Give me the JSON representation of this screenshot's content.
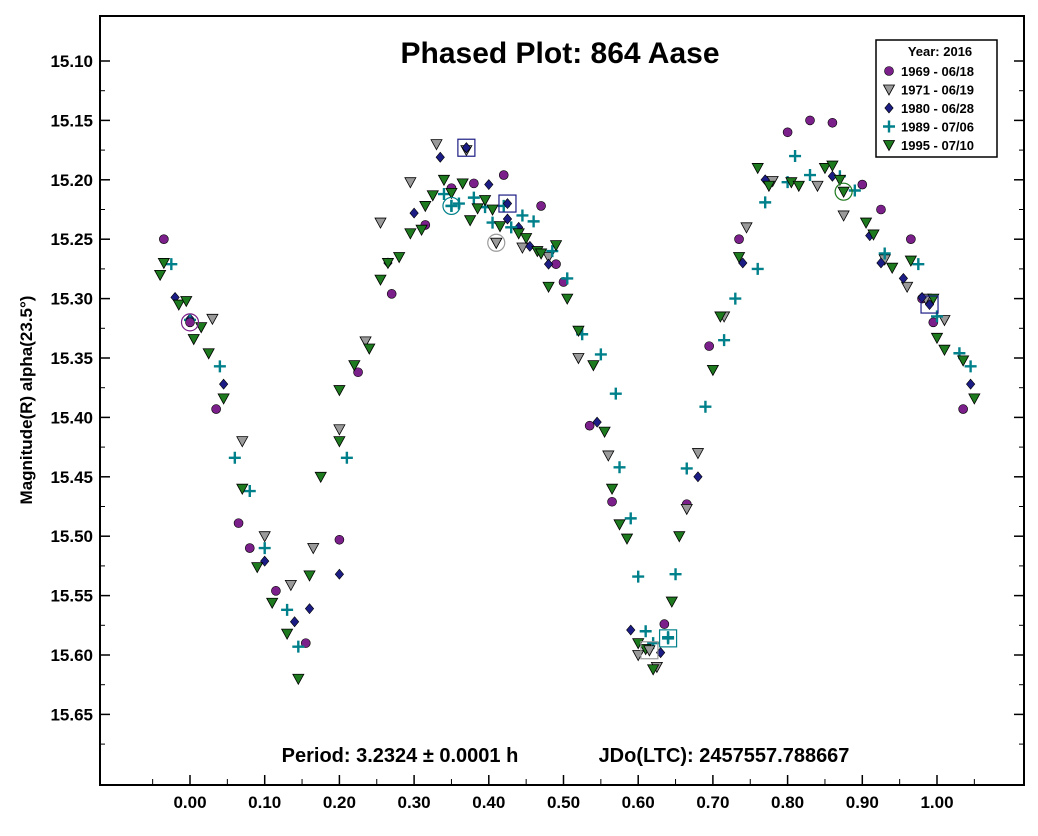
{
  "chart_data": {
    "type": "scatter",
    "title": "Phased Plot: 864 Aase",
    "ylabel": "Magnitude(R) alpha(23.5°)",
    "xlabel": "",
    "footer_period": "Period: 3.2324 ± 0.0001 h",
    "footer_epoch": "JDo(LTC): 2457557.788667",
    "x_ticks": [
      "0.00",
      "0.10",
      "0.20",
      "0.30",
      "0.40",
      "0.50",
      "0.60",
      "0.70",
      "0.80",
      "0.90",
      "1.00"
    ],
    "y_ticks": [
      "15.10",
      "15.15",
      "15.20",
      "15.25",
      "15.30",
      "15.35",
      "15.40",
      "15.45",
      "15.50",
      "15.55",
      "15.60",
      "15.65"
    ],
    "xlim": [
      -0.12,
      1.12
    ],
    "ylim": [
      15.05,
      15.7
    ],
    "y_inverted": true,
    "grid": false,
    "legend_placement": "top-right",
    "legend_title": "Year: 2016",
    "series": [
      {
        "name": "1969 - 06/18",
        "marker": "circle",
        "color": "#7b1f8a",
        "points": [
          [
            -0.035,
            15.25
          ],
          [
            0.035,
            15.393
          ],
          [
            0.065,
            15.489
          ],
          [
            0.08,
            15.51
          ],
          [
            0.115,
            15.546
          ],
          [
            0.155,
            15.59
          ],
          [
            0.2,
            15.503
          ],
          [
            0.225,
            15.362
          ],
          [
            0.27,
            15.296
          ],
          [
            0.315,
            15.238
          ],
          [
            0.35,
            15.207
          ],
          [
            0.38,
            15.203
          ],
          [
            0.42,
            15.196
          ],
          [
            0.47,
            15.222
          ],
          [
            0.49,
            15.271
          ],
          [
            0.5,
            15.286
          ],
          [
            0.535,
            15.407
          ],
          [
            0.565,
            15.471
          ],
          [
            0.635,
            15.574
          ],
          [
            0.665,
            15.473
          ],
          [
            0.695,
            15.34
          ],
          [
            0.735,
            15.25
          ],
          [
            0.8,
            15.16
          ],
          [
            0.83,
            15.15
          ],
          [
            0.86,
            15.152
          ],
          [
            0.9,
            15.204
          ],
          [
            0.925,
            15.225
          ],
          [
            0.965,
            15.25
          ],
          [
            0.98,
            15.3
          ],
          [
            0.995,
            15.32
          ],
          [
            1.035,
            15.393
          ]
        ]
      },
      {
        "name": "1971 - 06/19",
        "marker": "triangle",
        "color": "#9a9a9a",
        "points": [
          [
            0.03,
            15.317
          ],
          [
            0.07,
            15.42
          ],
          [
            0.1,
            15.5
          ],
          [
            0.135,
            15.541
          ],
          [
            0.165,
            15.51
          ],
          [
            0.2,
            15.41
          ],
          [
            0.235,
            15.336
          ],
          [
            0.255,
            15.236
          ],
          [
            0.295,
            15.202
          ],
          [
            0.33,
            15.17
          ],
          [
            0.37,
            15.175
          ],
          [
            0.41,
            15.253
          ],
          [
            0.445,
            15.257
          ],
          [
            0.48,
            15.265
          ],
          [
            0.52,
            15.35
          ],
          [
            0.56,
            15.432
          ],
          [
            0.6,
            15.6
          ],
          [
            0.625,
            15.61
          ],
          [
            0.665,
            15.477
          ],
          [
            0.68,
            15.43
          ],
          [
            0.715,
            15.315
          ],
          [
            0.745,
            15.24
          ],
          [
            0.78,
            15.201
          ],
          [
            0.84,
            15.205
          ],
          [
            0.875,
            15.23
          ],
          [
            0.93,
            15.267
          ],
          [
            0.96,
            15.29
          ],
          [
            0.985,
            15.3
          ],
          [
            1.01,
            15.318
          ]
        ]
      },
      {
        "name": "1980 - 06/28",
        "marker": "diamond",
        "color": "#1c1c85",
        "points": [
          [
            -0.02,
            15.299
          ],
          [
            0.0,
            15.317
          ],
          [
            0.045,
            15.372
          ],
          [
            0.1,
            15.521
          ],
          [
            0.14,
            15.572
          ],
          [
            0.16,
            15.561
          ],
          [
            0.2,
            15.532
          ],
          [
            0.265,
            15.27
          ],
          [
            0.3,
            15.228
          ],
          [
            0.335,
            15.181
          ],
          [
            0.37,
            15.173
          ],
          [
            0.4,
            15.204
          ],
          [
            0.425,
            15.233
          ],
          [
            0.44,
            15.24
          ],
          [
            0.455,
            15.256
          ],
          [
            0.48,
            15.271
          ],
          [
            0.545,
            15.404
          ],
          [
            0.59,
            15.579
          ],
          [
            0.63,
            15.598
          ],
          [
            0.68,
            15.45
          ],
          [
            0.74,
            15.27
          ],
          [
            0.77,
            15.2
          ],
          [
            0.86,
            15.197
          ],
          [
            0.91,
            15.247
          ],
          [
            0.925,
            15.27
          ],
          [
            0.955,
            15.283
          ],
          [
            0.98,
            15.299
          ],
          [
            1.045,
            15.372
          ]
        ]
      },
      {
        "name": "1989 - 07/06",
        "marker": "plus",
        "color": "#00808a",
        "points": [
          [
            -0.025,
            15.271
          ],
          [
            0.0,
            15.318
          ],
          [
            0.04,
            15.357
          ],
          [
            0.06,
            15.434
          ],
          [
            0.08,
            15.462
          ],
          [
            0.1,
            15.51
          ],
          [
            0.13,
            15.562
          ],
          [
            0.145,
            15.593
          ],
          [
            0.21,
            15.434
          ],
          [
            0.34,
            15.212
          ],
          [
            0.35,
            15.222
          ],
          [
            0.36,
            15.22
          ],
          [
            0.38,
            15.215
          ],
          [
            0.395,
            15.223
          ],
          [
            0.405,
            15.236
          ],
          [
            0.42,
            15.222
          ],
          [
            0.43,
            15.24
          ],
          [
            0.445,
            15.23
          ],
          [
            0.46,
            15.235
          ],
          [
            0.485,
            15.26
          ],
          [
            0.505,
            15.283
          ],
          [
            0.525,
            15.33
          ],
          [
            0.55,
            15.347
          ],
          [
            0.57,
            15.38
          ],
          [
            0.575,
            15.442
          ],
          [
            0.59,
            15.485
          ],
          [
            0.6,
            15.534
          ],
          [
            0.61,
            15.58
          ],
          [
            0.62,
            15.59
          ],
          [
            0.64,
            15.585
          ],
          [
            0.65,
            15.532
          ],
          [
            0.665,
            15.443
          ],
          [
            0.69,
            15.391
          ],
          [
            0.715,
            15.335
          ],
          [
            0.73,
            15.3
          ],
          [
            0.76,
            15.275
          ],
          [
            0.77,
            15.219
          ],
          [
            0.8,
            15.202
          ],
          [
            0.81,
            15.18
          ],
          [
            0.83,
            15.196
          ],
          [
            0.87,
            15.197
          ],
          [
            0.89,
            15.209
          ],
          [
            0.93,
            15.262
          ],
          [
            0.975,
            15.271
          ],
          [
            1.0,
            15.315
          ],
          [
            1.03,
            15.346
          ],
          [
            1.045,
            15.357
          ]
        ]
      },
      {
        "name": "1995 - 07/10",
        "marker": "triangle",
        "color": "#1e7a1e",
        "points": [
          [
            -0.04,
            15.28
          ],
          [
            -0.035,
            15.27
          ],
          [
            -0.015,
            15.305
          ],
          [
            -0.005,
            15.302
          ],
          [
            0.005,
            15.334
          ],
          [
            0.015,
            15.324
          ],
          [
            0.025,
            15.346
          ],
          [
            0.045,
            15.384
          ],
          [
            0.07,
            15.46
          ],
          [
            0.09,
            15.526
          ],
          [
            0.11,
            15.556
          ],
          [
            0.13,
            15.582
          ],
          [
            0.145,
            15.62
          ],
          [
            0.16,
            15.533
          ],
          [
            0.175,
            15.45
          ],
          [
            0.2,
            15.42
          ],
          [
            0.2,
            15.377
          ],
          [
            0.22,
            15.356
          ],
          [
            0.24,
            15.342
          ],
          [
            0.255,
            15.284
          ],
          [
            0.265,
            15.27
          ],
          [
            0.28,
            15.265
          ],
          [
            0.295,
            15.245
          ],
          [
            0.31,
            15.242
          ],
          [
            0.315,
            15.222
          ],
          [
            0.325,
            15.213
          ],
          [
            0.34,
            15.2
          ],
          [
            0.35,
            15.211
          ],
          [
            0.365,
            15.203
          ],
          [
            0.375,
            15.234
          ],
          [
            0.385,
            15.224
          ],
          [
            0.395,
            15.217
          ],
          [
            0.405,
            15.225
          ],
          [
            0.415,
            15.239
          ],
          [
            0.44,
            15.245
          ],
          [
            0.45,
            15.249
          ],
          [
            0.465,
            15.26
          ],
          [
            0.47,
            15.262
          ],
          [
            0.48,
            15.29
          ],
          [
            0.49,
            15.255
          ],
          [
            0.505,
            15.3
          ],
          [
            0.52,
            15.327
          ],
          [
            0.54,
            15.356
          ],
          [
            0.555,
            15.412
          ],
          [
            0.565,
            15.46
          ],
          [
            0.575,
            15.49
          ],
          [
            0.585,
            15.502
          ],
          [
            0.6,
            15.59
          ],
          [
            0.61,
            15.595
          ],
          [
            0.62,
            15.612
          ],
          [
            0.645,
            15.555
          ],
          [
            0.655,
            15.5
          ],
          [
            0.7,
            15.36
          ],
          [
            0.71,
            15.315
          ],
          [
            0.735,
            15.265
          ],
          [
            0.76,
            15.19
          ],
          [
            0.775,
            15.205
          ],
          [
            0.805,
            15.202
          ],
          [
            0.815,
            15.205
          ],
          [
            0.85,
            15.19
          ],
          [
            0.86,
            15.188
          ],
          [
            0.87,
            15.2
          ],
          [
            0.905,
            15.236
          ],
          [
            0.915,
            15.246
          ],
          [
            0.94,
            15.274
          ],
          [
            0.965,
            15.268
          ],
          [
            0.995,
            15.3
          ],
          [
            1.0,
            15.333
          ],
          [
            1.01,
            15.343
          ],
          [
            1.035,
            15.352
          ],
          [
            1.05,
            15.384
          ]
        ]
      }
    ],
    "highlighted": [
      {
        "series": "1969 - 06/18",
        "shape": "circle",
        "x": 0.0,
        "y": 15.32
      },
      {
        "series": "1971 - 06/19",
        "shape": "circle",
        "x": 0.41,
        "y": 15.253
      },
      {
        "series": "1980 - 06/28",
        "shape": "square",
        "x": 0.37,
        "y": 15.173
      },
      {
        "series": "1980 - 06/28",
        "shape": "square",
        "x": 0.425,
        "y": 15.22
      },
      {
        "series": "1980 - 06/28",
        "shape": "square",
        "x": 0.99,
        "y": 15.305
      },
      {
        "series": "1989 - 07/06",
        "shape": "square",
        "x": 0.64,
        "y": 15.586
      },
      {
        "series": "1989 - 07/06",
        "shape": "circle",
        "x": 0.35,
        "y": 15.222
      },
      {
        "series": "1995 - 07/10",
        "shape": "circle",
        "x": 0.875,
        "y": 15.21
      },
      {
        "series": "1971 - 06/19",
        "shape": "square",
        "x": 0.615,
        "y": 15.596
      }
    ]
  }
}
